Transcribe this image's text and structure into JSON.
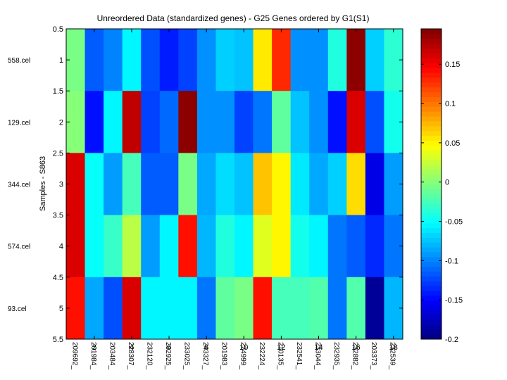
{
  "chart_data": {
    "type": "heatmap",
    "title": "Unreordered Data (standardized genes) - G25 Genes ordered by G1(S1)",
    "ylabel": "Samples - S863",
    "y_ticks": [
      "0.5",
      "1",
      "1.5",
      "2",
      "2.5",
      "3",
      "3.5",
      "4",
      "4.5",
      "5",
      "5.5"
    ],
    "y_range": [
      0.5,
      5.5
    ],
    "row_labels": [
      "558.cel",
      "129.cel",
      "344.cel",
      "574.cel",
      "93.cel"
    ],
    "x_ticks": [
      "2",
      "4",
      "6",
      "8",
      "10",
      "12",
      "14",
      "16",
      "18"
    ],
    "x_range": [
      0.5,
      18.5
    ],
    "column_labels": [
      "209692_",
      "201984_",
      "203484_",
      "228307_",
      "232120_",
      "232925_",
      "233025_",
      "243327_",
      "201983_",
      "224999_",
      "232224_",
      "210135_",
      "232541_",
      "233044_",
      "232935_",
      "232882_",
      "203373_",
      "232539_"
    ],
    "values": [
      [
        -0.005,
        -0.115,
        -0.1,
        -0.055,
        -0.12,
        -0.14,
        -0.125,
        -0.095,
        -0.07,
        -0.075,
        0.055,
        0.13,
        -0.095,
        -0.095,
        -0.04,
        0.19,
        -0.07,
        -0.035
      ],
      [
        0.0,
        -0.145,
        -0.055,
        0.17,
        -0.125,
        -0.11,
        0.19,
        -0.095,
        -0.095,
        -0.125,
        -0.105,
        -0.015,
        -0.075,
        -0.095,
        -0.145,
        0.16,
        -0.12,
        -0.045
      ],
      [
        0.16,
        -0.05,
        -0.09,
        -0.025,
        -0.115,
        -0.115,
        -0.005,
        -0.085,
        -0.065,
        -0.075,
        0.07,
        0.05,
        -0.06,
        -0.085,
        -0.07,
        0.06,
        -0.16,
        -0.09
      ],
      [
        0.16,
        -0.05,
        -0.03,
        0.02,
        -0.09,
        -0.055,
        0.14,
        -0.08,
        -0.04,
        -0.055,
        0.035,
        0.05,
        -0.045,
        -0.055,
        -0.105,
        -0.115,
        -0.135,
        -0.105
      ],
      [
        0.14,
        -0.085,
        -0.12,
        0.16,
        -0.055,
        -0.055,
        -0.055,
        -0.105,
        -0.015,
        -0.005,
        0.14,
        -0.025,
        -0.025,
        -0.02,
        -0.105,
        -0.02,
        -0.19,
        -0.08
      ]
    ],
    "colorbar": {
      "min": -0.2,
      "max": 0.195,
      "ticks": [
        "-0.2",
        "-0.15",
        "-0.1",
        "-0.05",
        "0",
        "0.05",
        "0.1",
        "0.15"
      ],
      "colormap": "jet"
    },
    "grid": false
  }
}
